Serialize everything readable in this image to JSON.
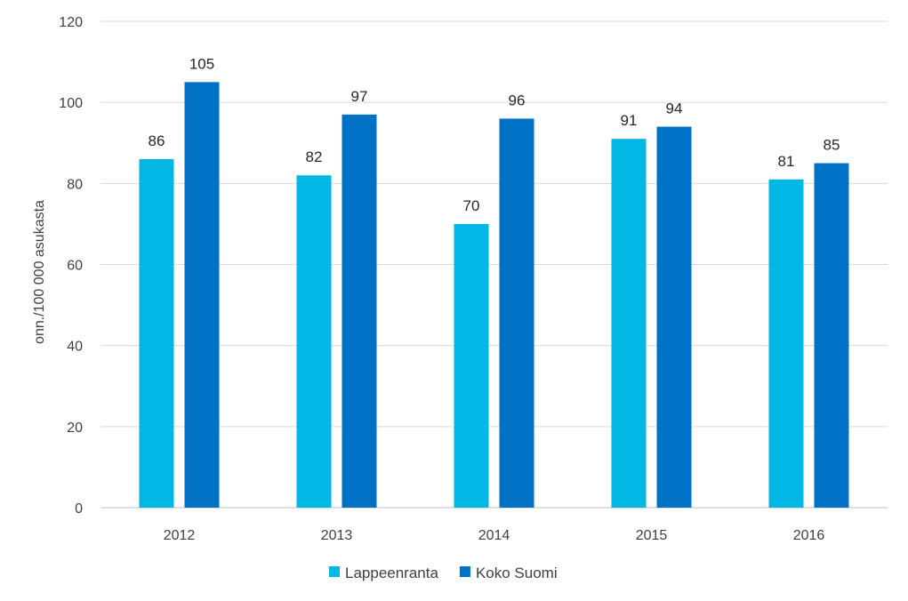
{
  "chart_data": {
    "type": "bar",
    "title": "",
    "xlabel": "",
    "ylabel": "onn./100 000 asukasta",
    "categories": [
      "2012",
      "2013",
      "2014",
      "2015",
      "2016"
    ],
    "series": [
      {
        "name": "Lappeenranta",
        "color": "#00B7E6",
        "values": [
          86,
          82,
          70,
          91,
          81
        ]
      },
      {
        "name": "Koko Suomi",
        "color": "#0072C6",
        "values": [
          105,
          97,
          96,
          94,
          85
        ]
      }
    ],
    "ylim": [
      0,
      120
    ],
    "yticks": [
      "0",
      "20",
      "40",
      "60",
      "80",
      "100",
      "120"
    ],
    "grid": true,
    "legend_position": "bottom"
  }
}
